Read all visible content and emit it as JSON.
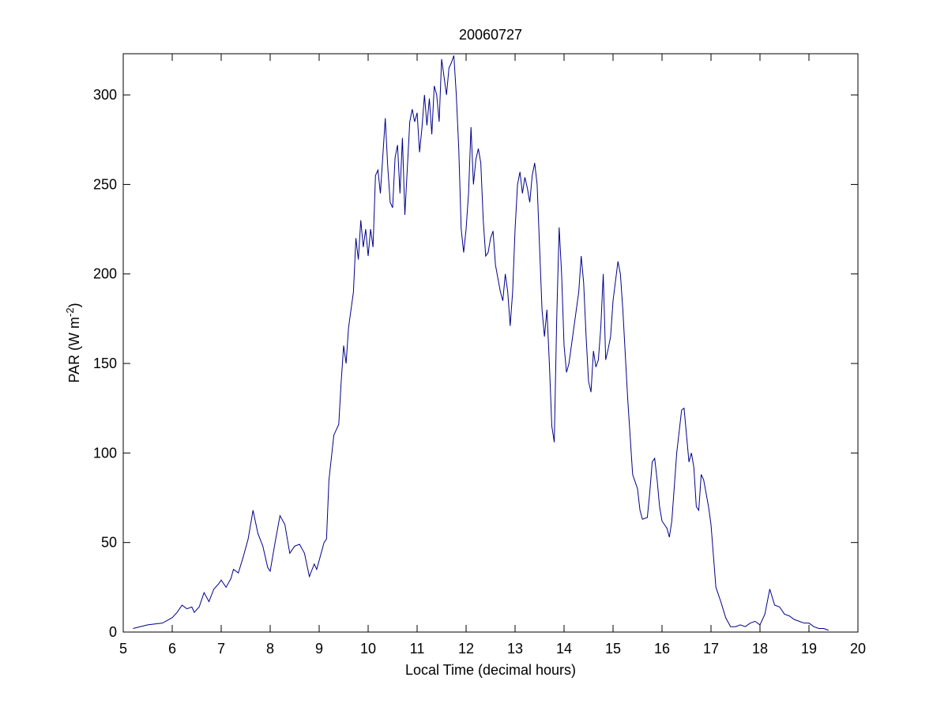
{
  "chart_data": {
    "type": "line",
    "title": "20060727",
    "xlabel": "Local Time (decimal hours)",
    "ylabel": {
      "text": "PAR (W m",
      "superscript": "-2",
      "suffix": ")"
    },
    "xlim": [
      5,
      20
    ],
    "ylim": [
      0,
      323
    ],
    "xticks": [
      5,
      6,
      7,
      8,
      9,
      10,
      11,
      12,
      13,
      14,
      15,
      16,
      17,
      18,
      19,
      20
    ],
    "yticks": [
      0,
      50,
      100,
      150,
      200,
      250,
      300
    ],
    "grid": false,
    "x": [
      5.2,
      5.5,
      5.8,
      6.0,
      6.1,
      6.2,
      6.3,
      6.4,
      6.45,
      6.55,
      6.65,
      6.75,
      6.85,
      6.95,
      7.0,
      7.1,
      7.2,
      7.25,
      7.35,
      7.45,
      7.55,
      7.65,
      7.75,
      7.85,
      7.95,
      8.0,
      8.1,
      8.2,
      8.3,
      8.35,
      8.4,
      8.5,
      8.6,
      8.7,
      8.8,
      8.9,
      8.95,
      9.0,
      9.1,
      9.15,
      9.2,
      9.3,
      9.35,
      9.4,
      9.45,
      9.5,
      9.55,
      9.6,
      9.7,
      9.75,
      9.8,
      9.85,
      9.9,
      9.95,
      10.0,
      10.05,
      10.1,
      10.15,
      10.2,
      10.25,
      10.35,
      10.4,
      10.45,
      10.5,
      10.55,
      10.6,
      10.65,
      10.7,
      10.75,
      10.85,
      10.9,
      10.95,
      11.0,
      11.05,
      11.1,
      11.15,
      11.2,
      11.25,
      11.3,
      11.35,
      11.4,
      11.45,
      11.5,
      11.55,
      11.6,
      11.65,
      11.7,
      11.75,
      11.8,
      11.85,
      11.9,
      11.95,
      12.0,
      12.05,
      12.1,
      12.15,
      12.2,
      12.25,
      12.3,
      12.35,
      12.4,
      12.45,
      12.5,
      12.55,
      12.6,
      12.7,
      12.75,
      12.8,
      12.85,
      12.9,
      12.95,
      13.0,
      13.05,
      13.1,
      13.15,
      13.2,
      13.25,
      13.3,
      13.35,
      13.4,
      13.45,
      13.5,
      13.55,
      13.6,
      13.65,
      13.7,
      13.75,
      13.8,
      13.85,
      13.9,
      13.95,
      14.0,
      14.05,
      14.1,
      14.15,
      14.2,
      14.3,
      14.35,
      14.4,
      14.45,
      14.5,
      14.55,
      14.6,
      14.65,
      14.7,
      14.75,
      14.8,
      14.85,
      14.9,
      14.95,
      15.0,
      15.1,
      15.15,
      15.2,
      15.3,
      15.4,
      15.5,
      15.55,
      15.6,
      15.7,
      15.75,
      15.8,
      15.85,
      15.9,
      15.95,
      16.0,
      16.1,
      16.15,
      16.2,
      16.3,
      16.4,
      16.45,
      16.5,
      16.55,
      16.6,
      16.65,
      16.7,
      16.75,
      16.8,
      16.85,
      16.95,
      17.0,
      17.1,
      17.2,
      17.3,
      17.4,
      17.5,
      17.6,
      17.7,
      17.8,
      17.9,
      18.0,
      18.1,
      18.2,
      18.3,
      18.4,
      18.5,
      18.6,
      18.7,
      18.8,
      18.9,
      19.0,
      19.1,
      19.2,
      19.3,
      19.4
    ],
    "series": [
      {
        "color": "#00008b",
        "values": [
          2,
          4,
          5,
          8,
          11,
          15,
          13,
          14,
          11,
          14,
          22,
          17,
          24,
          27,
          29,
          25,
          30,
          35,
          33,
          42,
          52,
          68,
          55,
          48,
          36,
          34,
          50,
          65,
          60,
          52,
          44,
          48,
          49,
          44,
          31,
          38,
          35,
          40,
          50,
          52,
          85,
          110,
          113,
          116,
          140,
          160,
          150,
          170,
          190,
          220,
          208,
          230,
          215,
          225,
          210,
          225,
          215,
          255,
          258,
          245,
          287,
          260,
          240,
          237,
          265,
          272,
          245,
          276,
          233,
          285,
          292,
          285,
          290,
          268,
          282,
          300,
          283,
          298,
          278,
          305,
          300,
          285,
          320,
          310,
          300,
          315,
          318,
          322,
          300,
          270,
          225,
          212,
          225,
          245,
          282,
          250,
          264,
          270,
          262,
          230,
          210,
          212,
          220,
          224,
          205,
          190,
          185,
          200,
          190,
          171,
          190,
          225,
          250,
          257,
          245,
          254,
          248,
          240,
          255,
          262,
          250,
          215,
          180,
          165,
          180,
          150,
          115,
          106,
          175,
          226,
          200,
          160,
          145,
          150,
          160,
          170,
          190,
          210,
          195,
          165,
          140,
          134,
          157,
          148,
          152,
          170,
          200,
          152,
          158,
          165,
          185,
          207,
          200,
          180,
          130,
          88,
          80,
          68,
          63,
          64,
          78,
          95,
          97,
          85,
          70,
          62,
          58,
          53,
          62,
          100,
          124,
          125,
          110,
          95,
          100,
          92,
          70,
          68,
          88,
          85,
          70,
          60,
          25,
          17,
          8,
          3,
          3,
          4,
          3,
          5,
          6,
          4,
          10,
          24,
          15,
          14,
          10,
          9,
          7,
          6,
          5,
          5,
          3,
          2,
          2,
          1
        ]
      }
    ]
  }
}
